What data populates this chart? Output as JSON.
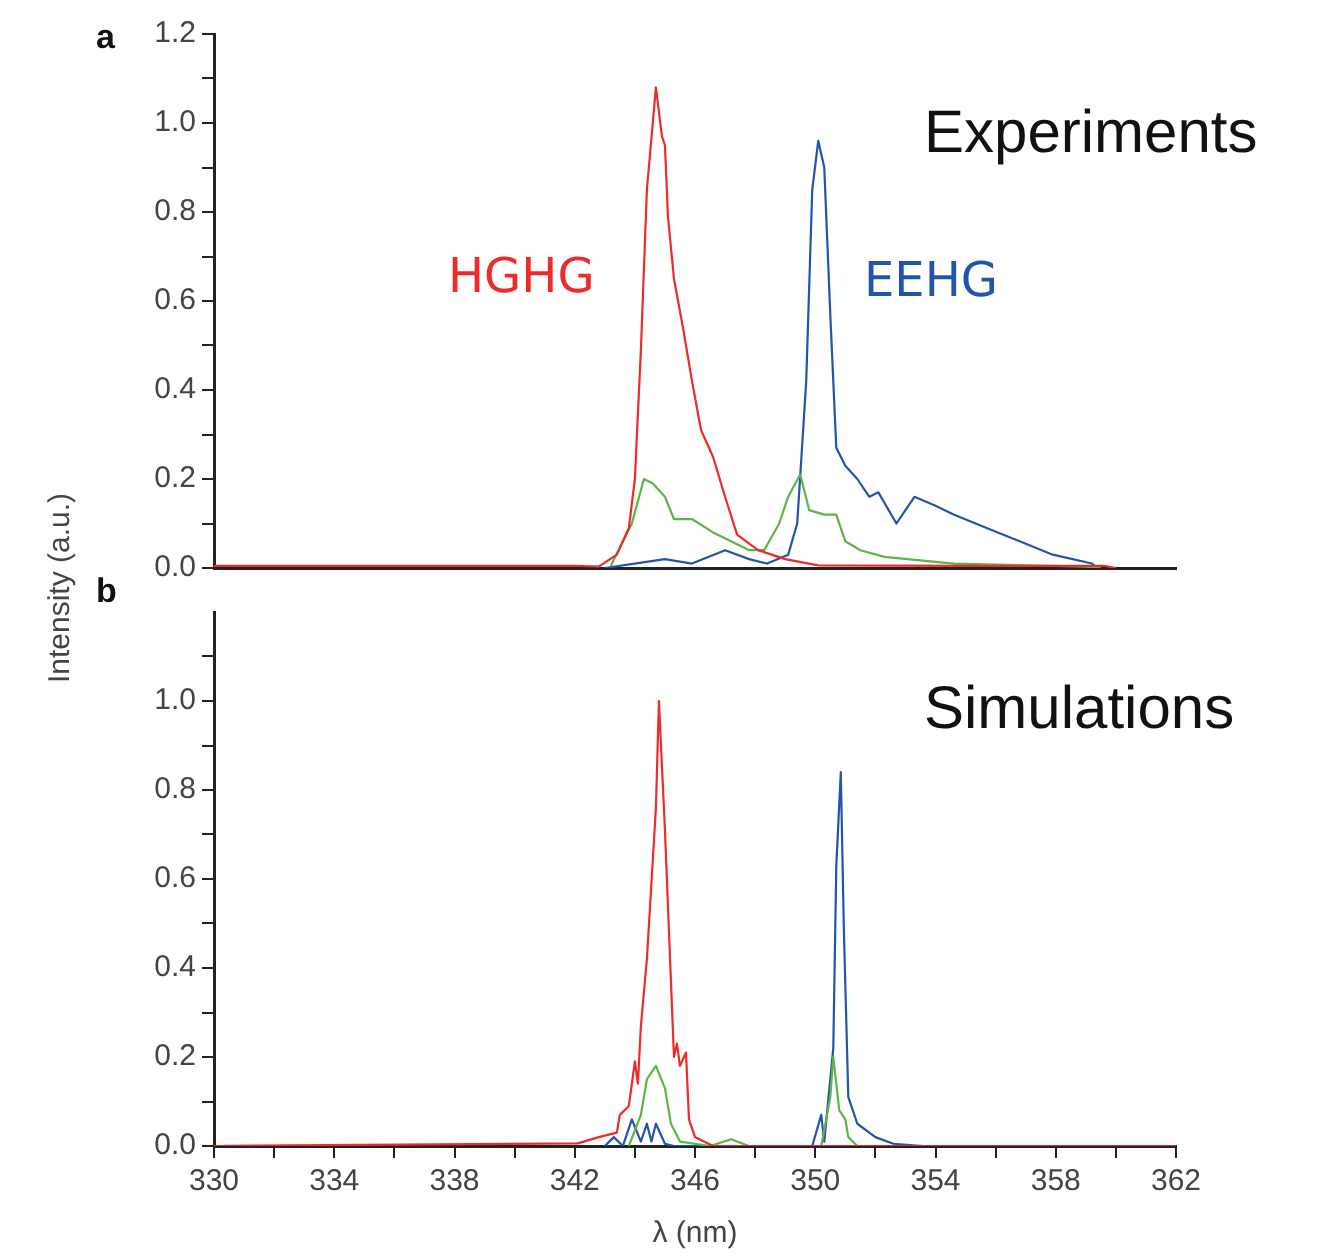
{
  "chart_data": [
    {
      "type": "line",
      "ylabel": "Intensity (a.u.)",
      "annotations": [
        "a",
        "Experiments"
      ],
      "xlim": [
        330,
        362
      ],
      "ylim": [
        0,
        1.2
      ],
      "yticks": [
        {
          "value": 0,
          "label": "0.0"
        },
        {
          "value": 0.1,
          "label": null
        },
        0.2,
        {
          "value": 0.3,
          "label": null
        },
        0.4,
        {
          "value": 0.5,
          "label": null
        },
        0.6,
        {
          "value": 0.7,
          "label": null
        },
        0.8,
        {
          "value": 0.9,
          "label": null
        },
        {
          "value": 1,
          "label": "1.0"
        },
        {
          "value": 1.1,
          "label": null
        },
        1.2
      ],
      "tick_labels": "y",
      "grid": false,
      "legend": false,
      "series": [
        {
          "name": "HGHG",
          "color": "#ee2a2a",
          "x": [
            330,
            342,
            342.8,
            343.4,
            343.8,
            344.0,
            344.2,
            344.4,
            344.7,
            344.9,
            345.0,
            345.1,
            345.3,
            345.6,
            345.9,
            346.2,
            346.6,
            347.0,
            347.4,
            348.1,
            349.0,
            350.1,
            355,
            359.6,
            360
          ],
          "values": [
            0.005,
            0.005,
            0.003,
            0.03,
            0.09,
            0.2,
            0.49,
            0.85,
            1.08,
            0.97,
            0.95,
            0.79,
            0.65,
            0.54,
            0.42,
            0.31,
            0.25,
            0.16,
            0.075,
            0.04,
            0.02,
            0.006,
            0.005,
            0.005,
            0
          ]
        },
        {
          "color": "#5cb545",
          "x": [
            343.2,
            343.9,
            344.3,
            344.6,
            345.0,
            345.3,
            345.9,
            346.6,
            347.2,
            347.8,
            348.3,
            348.8,
            349.1,
            349.5,
            349.8,
            350.3,
            350.7,
            351.0,
            351.5,
            352.3,
            354.6,
            359.0,
            359.5
          ],
          "values": [
            0.005,
            0.1,
            0.2,
            0.19,
            0.16,
            0.11,
            0.11,
            0.08,
            0.06,
            0.04,
            0.04,
            0.1,
            0.16,
            0.21,
            0.13,
            0.12,
            0.12,
            0.06,
            0.04,
            0.025,
            0.01,
            0.003,
            0
          ]
        },
        {
          "name": "EEHG",
          "color": "#2255aa",
          "x": [
            343,
            345.0,
            345.9,
            347.0,
            347.8,
            348.4,
            349.1,
            349.4,
            349.7,
            349.9,
            350.1,
            350.3,
            350.5,
            350.7,
            351.0,
            351.4,
            351.8,
            352.1,
            352.7,
            353.3,
            354.0,
            354.6,
            355.7,
            356.8,
            357.9,
            359.2,
            359.4
          ],
          "values": [
            0,
            0.02,
            0.01,
            0.04,
            0.02,
            0.01,
            0.03,
            0.1,
            0.42,
            0.85,
            0.96,
            0.9,
            0.57,
            0.27,
            0.23,
            0.2,
            0.16,
            0.17,
            0.1,
            0.16,
            0.14,
            0.12,
            0.09,
            0.06,
            0.03,
            0.01,
            0
          ]
        }
      ]
    },
    {
      "type": "line",
      "xlabel": "λ (nm)",
      "annotations": [
        "b",
        "Simulations"
      ],
      "xlim": [
        330,
        362
      ],
      "xticks": [
        330,
        {
          "value": 332,
          "label": null
        },
        334,
        {
          "value": 336,
          "label": null
        },
        338,
        {
          "value": 340,
          "label": null
        },
        342,
        {
          "value": 344,
          "label": null
        },
        346,
        {
          "value": 348,
          "label": null
        },
        350,
        {
          "value": 352,
          "label": null
        },
        354,
        {
          "value": 356,
          "label": null
        },
        358,
        {
          "value": 360,
          "label": null
        },
        362
      ],
      "ylim": [
        0,
        1.2
      ],
      "yticks": [
        {
          "value": 0,
          "label": "0.0"
        },
        {
          "value": 0.1,
          "label": null
        },
        0.2,
        {
          "value": 0.3,
          "label": null
        },
        0.4,
        {
          "value": 0.5,
          "label": null
        },
        0.6,
        {
          "value": 0.7,
          "label": null
        },
        0.8,
        {
          "value": 0.9,
          "label": null
        },
        {
          "value": 1,
          "label": "1.0"
        },
        {
          "value": 1.1,
          "label": null
        }
      ],
      "grid": false,
      "legend": false,
      "series": [
        {
          "color": "#ee2a2a",
          "x": [
            330,
            342.1,
            342.8,
            343.4,
            343.5,
            343.8,
            344.0,
            344.1,
            344.2,
            344.4,
            344.7,
            344.8,
            345.0,
            345.2,
            345.3,
            345.4,
            345.5,
            345.7,
            345.8,
            346.0,
            346.6,
            362
          ],
          "values": [
            0,
            0.006,
            0.02,
            0.03,
            0.07,
            0.09,
            0.19,
            0.14,
            0.27,
            0.42,
            0.76,
            1.0,
            0.71,
            0.37,
            0.2,
            0.23,
            0.18,
            0.21,
            0.06,
            0.02,
            0,
            0
          ]
        },
        {
          "color": "#5cb545",
          "x": [
            343.8,
            344.2,
            344.4,
            344.7,
            345.0,
            345.2,
            345.5,
            346.5,
            347.2,
            347.8,
            350.2,
            350.5,
            350.6,
            350.8,
            351.0,
            351.1,
            351.4
          ],
          "values": [
            0,
            0.07,
            0.15,
            0.18,
            0.13,
            0.05,
            0.01,
            0,
            0.015,
            0,
            0,
            0.11,
            0.2,
            0.08,
            0.06,
            0.02,
            0
          ]
        },
        {
          "color": "#2255aa",
          "x": [
            343.0,
            343.3,
            343.6,
            343.9,
            344.2,
            344.4,
            344.55,
            344.7,
            345.0,
            345.3,
            349.9,
            350.2,
            350.3,
            350.6,
            350.7,
            350.85,
            350.95,
            351.1,
            351.4,
            352.0,
            352.6,
            353.6
          ],
          "values": [
            0,
            0.02,
            0,
            0.06,
            0.01,
            0.05,
            0.01,
            0.05,
            0.005,
            0,
            0,
            0.07,
            0.01,
            0.22,
            0.63,
            0.84,
            0.49,
            0.11,
            0.05,
            0.02,
            0.005,
            0
          ]
        }
      ]
    }
  ]
}
